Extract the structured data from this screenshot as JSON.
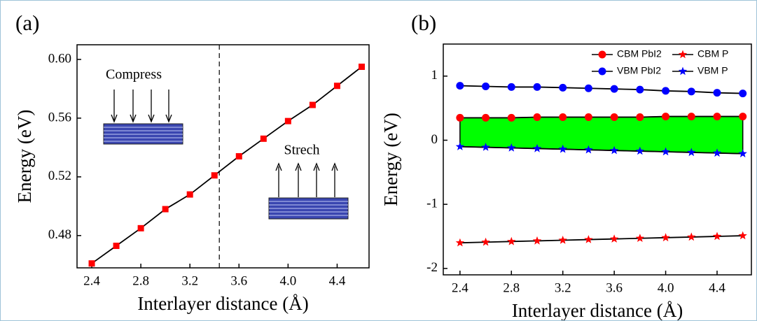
{
  "chart_data": [
    {
      "type": "line",
      "label": "(a)",
      "x_label": "Interlayer distance (Å)",
      "y_label": "Energy (eV)",
      "x": [
        2.4,
        2.6,
        2.8,
        3.0,
        3.2,
        3.4,
        3.6,
        3.8,
        4.0,
        4.2,
        4.4,
        4.6
      ],
      "series": [
        {
          "color": "#ff0000",
          "marker": "square",
          "values": [
            0.461,
            0.473,
            0.485,
            0.498,
            0.508,
            0.521,
            0.534,
            0.546,
            0.558,
            0.569,
            0.582,
            0.595
          ]
        }
      ],
      "xlim": [
        2.28,
        4.66
      ],
      "xticks": [
        2.4,
        2.8,
        3.2,
        3.6,
        {
          "value": 4.0,
          "label": "4.0"
        },
        4.4
      ],
      "ylim": [
        0.458,
        0.61
      ],
      "yticks": [
        0.48,
        0.52,
        0.56,
        {
          "value": 0.6,
          "label": "0.60"
        }
      ],
      "divider_x": 3.44,
      "annotations": [
        "Compress",
        "Strech"
      ]
    },
    {
      "type": "line",
      "label": "(b)",
      "x_label": "Interlayer distance (Å)",
      "y_label": "Energy (eV)",
      "x": [
        2.4,
        2.6,
        2.8,
        3.0,
        3.2,
        3.4,
        3.6,
        3.8,
        4.0,
        4.2,
        4.4,
        4.6
      ],
      "series": [
        {
          "name": "CBM PbI2",
          "color": "#ff0000",
          "marker": "circle",
          "values": [
            0.35,
            0.35,
            0.35,
            0.36,
            0.36,
            0.36,
            0.36,
            0.36,
            0.37,
            0.37,
            0.37,
            0.37
          ]
        },
        {
          "name": "CBM P",
          "color": "#ff0000",
          "marker": "star",
          "values": [
            -1.6,
            -1.59,
            -1.58,
            -1.57,
            -1.56,
            -1.55,
            -1.54,
            -1.53,
            -1.52,
            -1.51,
            -1.5,
            -1.49
          ]
        },
        {
          "name": "VBM PbI2",
          "color": "#0000ff",
          "marker": "circle",
          "values": [
            0.85,
            0.84,
            0.83,
            0.83,
            0.82,
            0.81,
            0.8,
            0.79,
            0.77,
            0.76,
            0.74,
            0.73
          ]
        },
        {
          "name": "VBM P",
          "color": "#0000ff",
          "marker": "star",
          "values": [
            -0.1,
            -0.11,
            -0.12,
            -0.13,
            -0.14,
            -0.15,
            -0.16,
            -0.17,
            -0.18,
            -0.19,
            -0.2,
            -0.21
          ]
        }
      ],
      "fill_between": [
        0,
        3
      ],
      "fill_color": "#00ff00",
      "xlim": [
        2.27,
        4.667
      ],
      "xticks": [
        2.4,
        2.8,
        3.2,
        3.6,
        {
          "value": 4.0,
          "label": "4.0"
        },
        4.4
      ],
      "ylim": [
        -2.1,
        1.5
      ],
      "yticks": [
        -2,
        -1,
        0,
        1
      ]
    }
  ]
}
